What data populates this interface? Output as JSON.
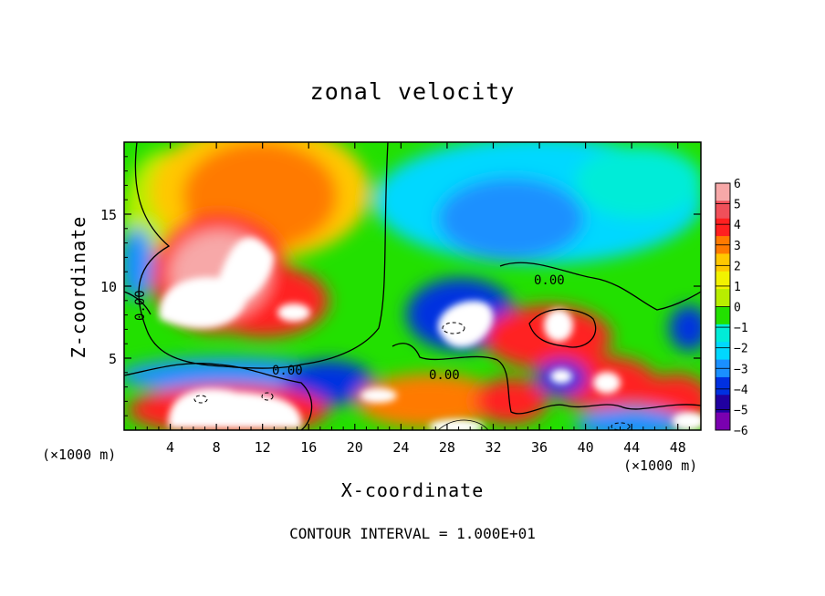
{
  "chart_data": {
    "type": "heatmap",
    "title": "zonal velocity",
    "xlabel": "X-coordinate",
    "ylabel": "Z-coordinate",
    "x_unit_left": "(×1000 m)",
    "x_unit_right": "(×1000 m)",
    "x_range": [
      0,
      50
    ],
    "y_range": [
      0,
      20
    ],
    "x_ticks": [
      4,
      8,
      12,
      16,
      20,
      24,
      28,
      32,
      36,
      40,
      44,
      48
    ],
    "y_ticks": [
      5,
      10,
      15
    ],
    "colorbar": {
      "levels": [
        6,
        5,
        4,
        3,
        2,
        1,
        0,
        -1,
        -2,
        -3,
        -4,
        -5,
        -6
      ],
      "labels": [
        "6",
        "5",
        "4",
        "3",
        "2",
        "1",
        "0",
        "−1",
        "−2",
        "−3",
        "−4",
        "−5",
        "−6"
      ],
      "colors": [
        "#f7a8a8",
        "#f0505a",
        "#ff2020",
        "#ff7a00",
        "#ffc800",
        "#f2f200",
        "#b8ee00",
        "#22e000",
        "#00ecd8",
        "#00d8ff",
        "#1a90ff",
        "#0030e0",
        "#2000a0",
        "#7a00b0"
      ]
    },
    "contour_labels": [
      "0.00",
      "0.00",
      "0.00",
      "0.00"
    ],
    "footnote": "CONTOUR INTERVAL = 1.000E+01"
  }
}
